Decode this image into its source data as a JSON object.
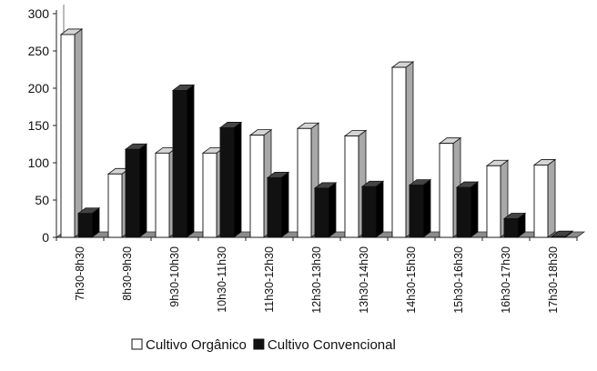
{
  "chart_data": {
    "type": "bar",
    "categories": [
      "7h30-8h30",
      "8h30-9h30",
      "9h30-10h30",
      "10h30-11h30",
      "11h30-12h30",
      "12h30-13h30",
      "13h30-14h30",
      "14h30-15h30",
      "15h30-16h30",
      "16h30-17h30",
      "17h30-18h30"
    ],
    "series": [
      {
        "name": "Cultivo Orgânico",
        "values": [
          272,
          85,
          113,
          113,
          137,
          146,
          136,
          228,
          126,
          96,
          97
        ],
        "color": "#ffffff"
      },
      {
        "name": "Cultivo Convencional",
        "values": [
          32,
          118,
          197,
          147,
          80,
          66,
          68,
          70,
          67,
          25,
          1
        ],
        "color": "#111111"
      }
    ],
    "yticks": [
      0,
      50,
      100,
      150,
      200,
      250,
      300
    ],
    "ylim": [
      0,
      300
    ],
    "grid": false,
    "legend_position": "bottom",
    "style": "3d-columns",
    "floor_color": "#8c8c8c",
    "side_color_light": "#a8a8a8",
    "top_color_light": "#d4d4d4",
    "side_color_dark": "#000000",
    "top_color_dark": "#444444"
  }
}
